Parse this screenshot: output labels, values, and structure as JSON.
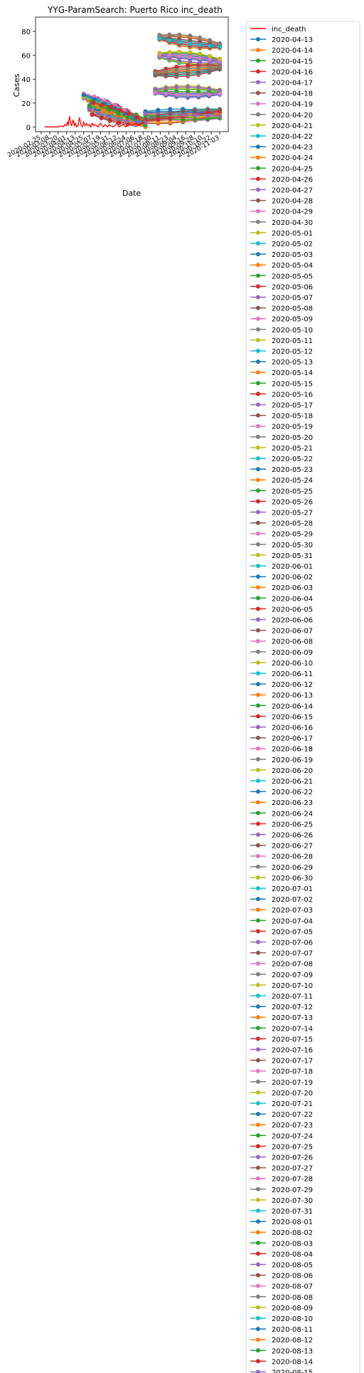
{
  "chart_data": {
    "type": "line",
    "title": "YYG-ParamSearch: Puerto Rico inc_death",
    "xlabel": "Date",
    "ylabel": "Cases",
    "ylim": [
      -4,
      92
    ],
    "y_ticks": [
      0,
      20,
      40,
      60,
      80
    ],
    "x_ticks": [
      "2020-02-25",
      "2020-03-08",
      "2020-03-20",
      "2020-04-01",
      "2020-04-13",
      "2020-04-25",
      "2020-05-07",
      "2020-05-19",
      "2020-05-31",
      "2020-06-12",
      "2020-06-24",
      "2020-07-06",
      "2020-07-18",
      "2020-07-30",
      "2020-08-11",
      "2020-08-23",
      "2020-09-04",
      "2020-09-16",
      "2020-09-28",
      "2020-10-10",
      "2020-10-22",
      "2020-11-03"
    ],
    "xlim": [
      "2020-02-17",
      "2020-11-15"
    ],
    "grid": false,
    "legend_position": "outside-right",
    "observed": {
      "name": "inc_death",
      "color": "#ff0000",
      "dates": [
        "2020-03-01",
        "2020-03-20",
        "2020-03-24",
        "2020-03-27",
        "2020-03-29",
        "2020-03-31",
        "2020-04-02",
        "2020-04-03",
        "2020-04-05",
        "2020-04-07",
        "2020-04-08",
        "2020-04-10",
        "2020-04-12",
        "2020-04-13",
        "2020-04-15",
        "2020-04-17",
        "2020-04-19",
        "2020-04-21",
        "2020-04-23",
        "2020-04-25",
        "2020-04-27",
        "2020-04-29",
        "2020-05-01",
        "2020-05-03",
        "2020-05-05",
        "2020-05-07",
        "2020-05-09",
        "2020-05-11",
        "2020-05-13",
        "2020-05-15",
        "2020-05-17",
        "2020-05-19",
        "2020-05-21",
        "2020-05-23",
        "2020-05-25",
        "2020-05-27",
        "2020-05-29",
        "2020-05-31",
        "2020-06-02",
        "2020-06-05",
        "2020-06-08",
        "2020-06-11",
        "2020-06-14",
        "2020-06-17",
        "2020-06-20",
        "2020-06-23",
        "2020-06-26",
        "2020-06-29",
        "2020-07-02",
        "2020-07-05",
        "2020-07-08",
        "2020-07-11",
        "2020-07-14",
        "2020-07-17",
        "2020-07-20"
      ],
      "values": [
        0,
        0,
        1,
        0,
        2,
        1,
        4,
        1,
        9,
        2,
        1,
        6,
        1,
        3,
        0,
        1,
        8,
        2,
        0,
        4,
        1,
        3,
        1,
        2,
        0,
        3,
        1,
        2,
        1,
        0,
        2,
        3,
        1,
        0,
        2,
        1,
        0,
        2,
        1,
        0,
        1,
        3,
        0,
        1,
        2,
        0,
        1,
        2,
        1,
        2,
        3,
        1,
        2,
        4,
        3
      ]
    },
    "legend_labels": [
      "2020-04-13",
      "2020-04-14",
      "2020-04-15",
      "2020-04-16",
      "2020-04-17",
      "2020-04-18",
      "2020-04-19",
      "2020-04-20",
      "2020-04-21",
      "2020-04-22",
      "2020-04-23",
      "2020-04-24",
      "2020-04-25",
      "2020-04-26",
      "2020-04-27",
      "2020-04-28",
      "2020-04-29",
      "2020-04-30",
      "2020-05-01",
      "2020-05-02",
      "2020-05-03",
      "2020-05-04",
      "2020-05-05",
      "2020-05-06",
      "2020-05-07",
      "2020-05-08",
      "2020-05-09",
      "2020-05-10",
      "2020-05-11",
      "2020-05-12",
      "2020-05-13",
      "2020-05-14",
      "2020-05-15",
      "2020-05-16",
      "2020-05-17",
      "2020-05-18",
      "2020-05-19",
      "2020-05-20",
      "2020-05-21",
      "2020-05-22",
      "2020-05-23",
      "2020-05-24",
      "2020-05-25",
      "2020-05-26",
      "2020-05-27",
      "2020-05-28",
      "2020-05-29",
      "2020-05-30",
      "2020-05-31",
      "2020-06-01",
      "2020-06-02",
      "2020-06-03",
      "2020-06-04",
      "2020-06-05",
      "2020-06-06",
      "2020-06-07",
      "2020-06-08",
      "2020-06-09",
      "2020-06-10",
      "2020-06-11",
      "2020-06-12",
      "2020-06-13",
      "2020-06-14",
      "2020-06-15",
      "2020-06-16",
      "2020-06-17",
      "2020-06-18",
      "2020-06-19",
      "2020-06-20",
      "2020-06-21",
      "2020-06-22",
      "2020-06-23",
      "2020-06-24",
      "2020-06-25",
      "2020-06-26",
      "2020-06-27",
      "2020-06-28",
      "2020-06-29",
      "2020-06-30",
      "2020-07-01",
      "2020-07-02",
      "2020-07-03",
      "2020-07-04",
      "2020-07-05",
      "2020-07-06",
      "2020-07-07",
      "2020-07-08",
      "2020-07-09",
      "2020-07-10",
      "2020-07-11",
      "2020-07-12",
      "2020-07-13",
      "2020-07-14",
      "2020-07-15",
      "2020-07-16",
      "2020-07-17",
      "2020-07-18",
      "2020-07-19",
      "2020-07-20",
      "2020-07-21",
      "2020-07-22",
      "2020-07-23",
      "2020-07-24",
      "2020-07-25",
      "2020-07-26",
      "2020-07-27",
      "2020-07-28",
      "2020-07-29",
      "2020-07-30",
      "2020-07-31",
      "2020-08-01",
      "2020-08-02",
      "2020-08-03",
      "2020-08-04",
      "2020-08-05",
      "2020-08-06",
      "2020-08-07",
      "2020-08-08",
      "2020-08-09",
      "2020-08-10",
      "2020-08-11",
      "2020-08-12",
      "2020-08-13",
      "2020-08-14",
      "2020-08-15"
    ],
    "palette": [
      "#1f77b4",
      "#ff7f0e",
      "#2ca02c",
      "#d62728",
      "#9467bd",
      "#8c564b",
      "#e377c2",
      "#7f7f7f",
      "#bcbd22",
      "#17becf"
    ],
    "forecast_bands": [
      {
        "start": [
          "2020-04-25",
          26
        ],
        "end": [
          "2020-07-21",
          1
        ]
      },
      {
        "start": [
          "2020-05-01",
          24
        ],
        "end": [
          "2020-07-21",
          2
        ]
      },
      {
        "start": [
          "2020-05-06",
          22
        ],
        "end": [
          "2020-07-21",
          2
        ]
      },
      {
        "start": [
          "2020-05-09",
          19
        ],
        "end": [
          "2020-07-21",
          3
        ]
      },
      {
        "start": [
          "2020-05-03",
          16
        ],
        "end": [
          "2020-07-21",
          5
        ]
      },
      {
        "start": [
          "2020-05-07",
          12
        ],
        "end": [
          "2020-07-21",
          4
        ]
      },
      {
        "start": [
          "2020-07-21",
          11
        ],
        "end": [
          "2020-11-03",
          9
        ]
      },
      {
        "start": [
          "2020-07-21",
          5
        ],
        "end": [
          "2020-11-03",
          13
        ]
      },
      {
        "start": [
          "2020-08-04",
          30
        ],
        "end": [
          "2020-11-03",
          29
        ]
      },
      {
        "start": [
          "2020-08-04",
          45
        ],
        "end": [
          "2020-11-03",
          50
        ]
      },
      {
        "start": [
          "2020-08-10",
          60
        ],
        "end": [
          "2020-11-03",
          55
        ]
      },
      {
        "start": [
          "2020-08-10",
          75
        ],
        "end": [
          "2020-11-03",
          68
        ]
      }
    ],
    "forecast_note": "Each dated series is a forecast trajectory drawn with circle markers; values within the bands are approximate."
  }
}
